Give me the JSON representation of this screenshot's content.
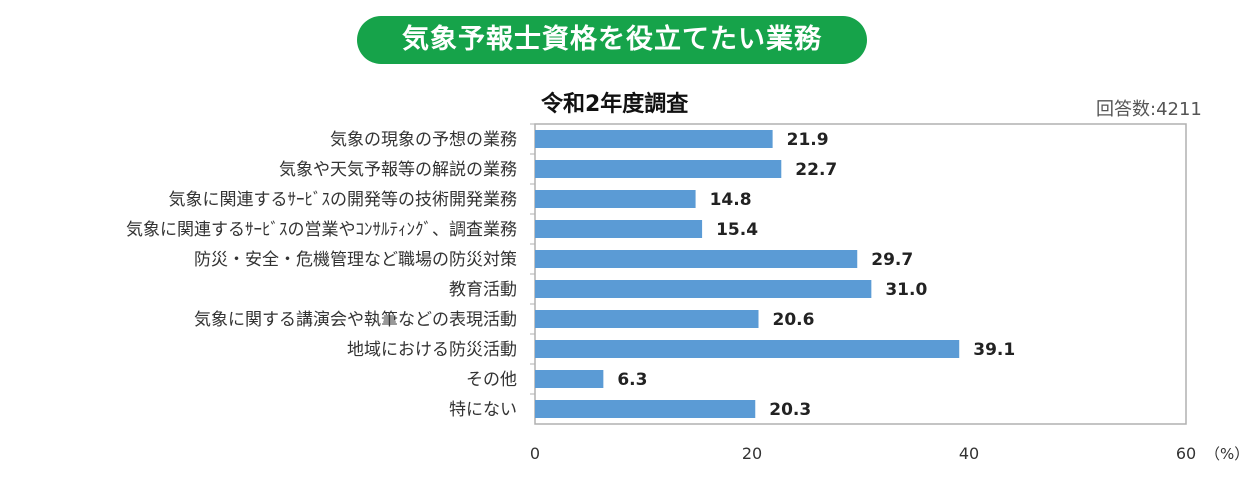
{
  "header": {
    "title": "気象予報士資格を役立てたい業務",
    "subtitle": "令和2年度調査",
    "respondents": "回答数:4211"
  },
  "colors": {
    "banner": "#16a34a",
    "bar": "#5b9bd5"
  },
  "chart_data": {
    "type": "bar",
    "orientation": "horizontal",
    "title": "令和2年度調査",
    "categories": [
      "気象の現象の予想の業務",
      "気象や天気予報等の解説の業務",
      "気象に関連するｻｰﾋﾞｽの開発等の技術開発業務",
      "気象に関連するｻｰﾋﾞｽの営業やｺﾝｻﾙﾃｨﾝｸﾞ、調査業務",
      "防災・安全・危機管理など職場の防災対策",
      "教育活動",
      "気象に関する講演会や執筆などの表現活動",
      "地域における防災活動",
      "その他",
      "特にない"
    ],
    "values": [
      21.9,
      22.7,
      14.8,
      15.4,
      29.7,
      31.0,
      20.6,
      39.1,
      6.3,
      20.3
    ],
    "value_labels": [
      "21.9",
      "22.7",
      "14.8",
      "15.4",
      "29.7",
      "31.0",
      "20.6",
      "39.1",
      "6.3",
      "20.3"
    ],
    "xlim": [
      0,
      60
    ],
    "xticks": [
      0,
      20,
      40,
      60
    ],
    "xtick_labels": [
      "0",
      "20",
      "40",
      "60"
    ],
    "unit": "（%）",
    "grid": false,
    "legend": "none"
  }
}
